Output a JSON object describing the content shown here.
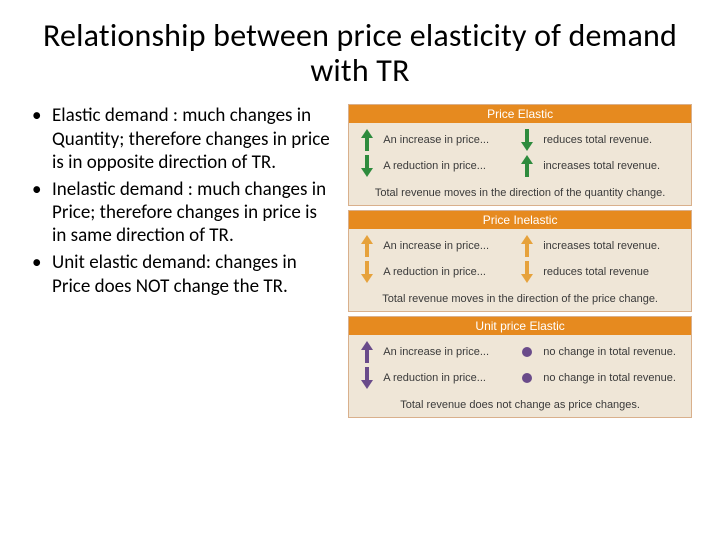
{
  "title": "Relationship between price elasticity of demand with TR",
  "bullets": [
    "Elastic demand : much changes in Quantity; therefore changes in price is in opposite direction of TR.",
    " Inelastic demand : much changes in Price; therefore changes in price is in same direction of TR.",
    "Unit elastic demand: changes in Price does NOT change the TR."
  ],
  "panels": [
    {
      "header": "Price Elastic",
      "header_bg": "#e68a1f",
      "arrow_color": "#2e8b3d",
      "rows": [
        {
          "left_dir": "up",
          "left_text": "An increase in price...",
          "right_dir": "down",
          "right_text": "reduces total revenue."
        },
        {
          "left_dir": "down",
          "left_text": "A reduction in price...",
          "right_dir": "up",
          "right_text": "increases total revenue."
        }
      ],
      "caption": "Total revenue moves in the direction of the quantity change.",
      "right_symbol": "arrow"
    },
    {
      "header": "Price Inelastic",
      "header_bg": "#e68a1f",
      "arrow_color": "#e6a23c",
      "rows": [
        {
          "left_dir": "up",
          "left_text": "An increase in price...",
          "right_dir": "up",
          "right_text": "increases total revenue."
        },
        {
          "left_dir": "down",
          "left_text": "A reduction in price...",
          "right_dir": "down",
          "right_text": "reduces total revenue"
        }
      ],
      "caption": "Total revenue moves in the direction of the price change.",
      "right_symbol": "arrow"
    },
    {
      "header": "Unit price Elastic",
      "header_bg": "#e68a1f",
      "arrow_color": "#6a4b8a",
      "rows": [
        {
          "left_dir": "up",
          "left_text": "An increase in price...",
          "right_dir": "dot",
          "right_text": "no change in total revenue."
        },
        {
          "left_dir": "down",
          "left_text": "A reduction in price...",
          "right_dir": "dot",
          "right_text": "no change in total revenue."
        }
      ],
      "caption": "Total revenue does not change as price changes.",
      "right_symbol": "dot"
    }
  ],
  "colors": {
    "panel_bg": "#efe6d7",
    "panel_border": "#d9b08c",
    "text": "#3a3a3a"
  }
}
